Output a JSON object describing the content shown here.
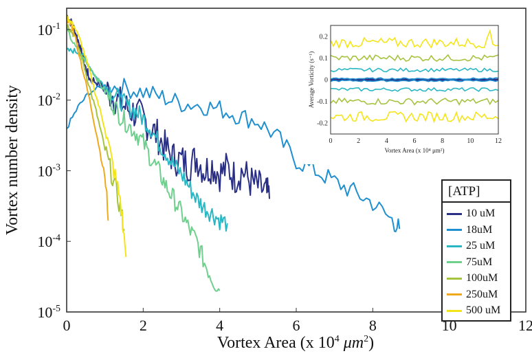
{
  "chart_data": [
    {
      "type": "line",
      "ylabel": "Vortex number density",
      "xlabel_prefix": "Vortex Area (x 10",
      "xlabel_exp": "4",
      "xlabel_unit": " μm",
      "xlabel_unit_exp": "2",
      "xlabel_suffix": ")",
      "xlim": [
        0,
        12
      ],
      "ylim": [
        1e-05,
        0.2
      ],
      "yscale": "log",
      "xticks": [
        "0",
        "2",
        "4",
        "6",
        "8",
        "10",
        "12"
      ],
      "yticks": [
        {
          "base": "10",
          "exp": "-1",
          "value": 0.1
        },
        {
          "base": "10",
          "exp": "-2",
          "value": 0.01
        },
        {
          "base": "10",
          "exp": "-3",
          "value": 0.001
        },
        {
          "base": "10",
          "exp": "-4",
          "value": 0.0001
        },
        {
          "base": "10",
          "exp": "-5",
          "value": 1e-05
        }
      ],
      "legend": {
        "title": "[ATP]",
        "position": "lower-right"
      },
      "series": [
        {
          "name": "10 uM",
          "color": "#2a2f86",
          "x": [
            0,
            0.1,
            0.2,
            0.3,
            0.4,
            0.5,
            0.6,
            0.8,
            1.0,
            1.2,
            1.4,
            1.6,
            1.8,
            2.0,
            2.2,
            2.4,
            2.6,
            2.8,
            3.0,
            3.2,
            3.4,
            3.6,
            3.8,
            4.0,
            4.2,
            4.4,
            4.6,
            4.8,
            5.0,
            5.2,
            5.3
          ],
          "y": [
            0.16,
            0.13,
            0.1,
            0.07,
            0.045,
            0.028,
            0.02,
            0.018,
            0.014,
            0.012,
            0.009,
            0.0075,
            0.0065,
            0.0055,
            0.004,
            0.003,
            0.002,
            0.0015,
            0.0014,
            0.0012,
            0.0015,
            0.001,
            0.0012,
            0.0009,
            0.0011,
            0.0008,
            0.001,
            0.0007,
            0.0006,
            0.0005,
            0.0004
          ]
        },
        {
          "name": "18uM",
          "color": "#1f8fd0",
          "x": [
            0,
            0.3,
            0.6,
            1.0,
            1.5,
            2.0,
            2.5,
            3.0,
            3.5,
            4.0,
            4.5,
            5.0,
            5.5,
            6.0,
            6.5,
            7.0,
            7.5,
            8.0,
            8.5,
            8.7
          ],
          "y": [
            0.004,
            0.008,
            0.013,
            0.016,
            0.015,
            0.013,
            0.011,
            0.009,
            0.0085,
            0.0075,
            0.006,
            0.005,
            0.003,
            0.0014,
            0.001,
            0.0007,
            0.0005,
            0.00035,
            0.0002,
            0.00015
          ]
        },
        {
          "name": "25 uM",
          "color": "#2ab7c4",
          "x": [
            0,
            0.2,
            0.4,
            0.6,
            0.8,
            1.0,
            1.2,
            1.4,
            1.6,
            1.8,
            2.0,
            2.2,
            2.4,
            2.6,
            2.8,
            3.0,
            3.2,
            3.4,
            3.6,
            3.8,
            4.0,
            4.2
          ],
          "y": [
            0.05,
            0.05,
            0.045,
            0.03,
            0.02,
            0.016,
            0.013,
            0.01,
            0.008,
            0.007,
            0.0055,
            0.004,
            0.0025,
            0.0018,
            0.0012,
            0.0009,
            0.0006,
            0.0004,
            0.0003,
            0.00025,
            0.0002,
            0.00018
          ]
        },
        {
          "name": "75uM",
          "color": "#6fcf8d",
          "x": [
            0,
            0.2,
            0.4,
            0.6,
            0.8,
            1.0,
            1.2,
            1.4,
            1.6,
            1.8,
            2.0,
            2.2,
            2.4,
            2.6,
            2.8,
            3.0,
            3.2,
            3.4,
            3.6,
            3.8,
            4.0
          ],
          "y": [
            0.1,
            0.06,
            0.04,
            0.03,
            0.02,
            0.013,
            0.009,
            0.006,
            0.0045,
            0.0035,
            0.0025,
            0.0015,
            0.001,
            0.0006,
            0.0004,
            0.00025,
            0.00015,
            0.0001,
            5e-05,
            3e-05,
            2e-05
          ]
        },
        {
          "name": "100uM",
          "color": "#a6c33f",
          "x": [
            0,
            0.1,
            0.2,
            0.4,
            0.6,
            0.8,
            1.0,
            1.2,
            1.4,
            1.5
          ],
          "y": [
            0.12,
            0.1,
            0.08,
            0.04,
            0.015,
            0.006,
            0.002,
            0.0008,
            0.0003,
            0.00015
          ]
        },
        {
          "name": "250uM",
          "color": "#f0a81c",
          "x": [
            0,
            0.1,
            0.2,
            0.4,
            0.6,
            0.8,
            1.0,
            1.1
          ],
          "y": [
            0.14,
            0.12,
            0.09,
            0.03,
            0.01,
            0.003,
            0.0008,
            0.0002
          ]
        },
        {
          "name": "500 uM",
          "color": "#f4e51a",
          "x": [
            0,
            0.1,
            0.2,
            0.4,
            0.6,
            0.8,
            1.0,
            1.2,
            1.4,
            1.55
          ],
          "y": [
            0.15,
            0.13,
            0.11,
            0.06,
            0.025,
            0.01,
            0.004,
            0.0012,
            0.0004,
            6e-05
          ]
        }
      ]
    },
    {
      "type": "line",
      "ylabel": "Average Vorticity (s⁻¹)",
      "xlabel": "Vortex Area (x 10⁴ μm²)",
      "xlim": [
        0,
        12
      ],
      "ylim": [
        -0.25,
        0.25
      ],
      "xticks": [
        "0",
        "2",
        "4",
        "6",
        "8",
        "10",
        "12"
      ],
      "yticks": [
        "0.2",
        "0.1",
        "0",
        "-0.1",
        "-0.2"
      ],
      "series": [
        {
          "color": "#2a2f86",
          "values_upper": 0.0,
          "values_lower": 0.0
        },
        {
          "color": "#1f8fd0",
          "values_upper": 0.005,
          "values_lower": -0.005
        },
        {
          "color": "#2ab7c4",
          "values_upper": 0.045,
          "values_lower": -0.045
        },
        {
          "color": "#a6c33f",
          "values_upper": 0.1,
          "values_lower": -0.1
        },
        {
          "color": "#f4e51a",
          "values_upper": 0.17,
          "values_lower": -0.17
        }
      ]
    }
  ]
}
